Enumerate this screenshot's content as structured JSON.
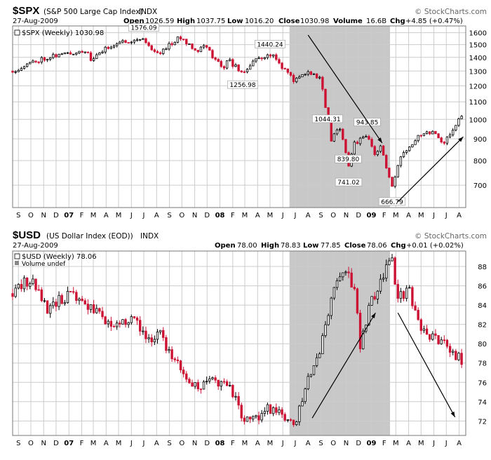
{
  "chart_data": [
    {
      "type": "candlestick",
      "symbol": "$SPX",
      "full_name": "(S&P 500 Large Cap Index)",
      "exchange": "INDX",
      "date": "27-Aug-2009",
      "brand": "© StockCharts.com",
      "legend": "$SPX (Weekly) 1030.98",
      "quote": {
        "open_label": "Open",
        "open": "1026.59",
        "high_label": "High",
        "high": "1037.75",
        "low_label": "Low",
        "low": "1016.20",
        "close_label": "Close",
        "close": "1030.98",
        "volume_label": "Volume",
        "volume": "16.6B",
        "chg_label": "Chg",
        "chg": "+4.85 (+0.47%)"
      },
      "y_scale": "log",
      "ylim": [
        620,
        1660
      ],
      "y_ticks": [
        700,
        800,
        900,
        1000,
        1100,
        1200,
        1300,
        1400,
        1500,
        1600
      ],
      "x_start": "2006-09-01",
      "x_end": "2009-08-31",
      "highlight": {
        "from": "2008-07-01",
        "to": "2009-03-01"
      },
      "trend_arrows": [
        {
          "from": [
            "2008-08-15",
            1580
          ],
          "to": [
            "2009-02-10",
            880
          ]
        },
        {
          "from": [
            "2009-03-20",
            640
          ],
          "to": [
            "2009-08-25",
            910
          ]
        }
      ],
      "annotations": [
        {
          "date": "2007-07-15",
          "value": 1576.09,
          "text": "1576.09",
          "pos": "above"
        },
        {
          "date": "2008-05-15",
          "value": 1440.24,
          "text": "1440.24",
          "pos": "above"
        },
        {
          "date": "2008-03-10",
          "value": 1256.98,
          "text": "1256.98",
          "pos": "below"
        },
        {
          "date": "2008-10-01",
          "value": 1044.31,
          "text": "1044.31",
          "pos": "below"
        },
        {
          "date": "2009-01-05",
          "value": 943.85,
          "text": "943.85",
          "pos": "above"
        },
        {
          "date": "2008-11-20",
          "value": 839.8,
          "text": "839.80",
          "pos": "below"
        },
        {
          "date": "2008-11-21",
          "value": 741.02,
          "text": "741.02",
          "pos": "below"
        },
        {
          "date": "2009-03-06",
          "value": 666.79,
          "text": "666.79",
          "pos": "below"
        }
      ],
      "anchors": [
        [
          "2006-09-01",
          1300
        ],
        [
          "2006-10-20",
          1365
        ],
        [
          "2006-12-01",
          1410
        ],
        [
          "2007-01-15",
          1430
        ],
        [
          "2007-02-23",
          1455
        ],
        [
          "2007-03-09",
          1380
        ],
        [
          "2007-04-27",
          1495
        ],
        [
          "2007-06-01",
          1530
        ],
        [
          "2007-07-13",
          1550
        ],
        [
          "2007-08-15",
          1420
        ],
        [
          "2007-09-14",
          1500
        ],
        [
          "2007-10-12",
          1560
        ],
        [
          "2007-11-23",
          1450
        ],
        [
          "2007-12-07",
          1500
        ],
        [
          "2008-01-22",
          1310
        ],
        [
          "2008-02-01",
          1390
        ],
        [
          "2008-03-10",
          1280
        ],
        [
          "2008-04-04",
          1370
        ],
        [
          "2008-05-16",
          1425
        ],
        [
          "2008-06-06",
          1360
        ],
        [
          "2008-06-27",
          1280
        ],
        [
          "2008-07-15",
          1230
        ],
        [
          "2008-08-08",
          1290
        ],
        [
          "2008-09-12",
          1260
        ],
        [
          "2008-10-10",
          890
        ],
        [
          "2008-10-31",
          960
        ],
        [
          "2008-11-21",
          780
        ],
        [
          "2008-12-05",
          880
        ],
        [
          "2009-01-06",
          910
        ],
        [
          "2009-01-23",
          830
        ],
        [
          "2009-02-06",
          860
        ],
        [
          "2009-03-06",
          690
        ],
        [
          "2009-03-27",
          810
        ],
        [
          "2009-05-08",
          920
        ],
        [
          "2009-06-12",
          940
        ],
        [
          "2009-07-10",
          880
        ],
        [
          "2009-08-21",
          1020
        ],
        [
          "2009-08-27",
          1030
        ]
      ],
      "x_labels": [
        {
          "date": "2006-09-15",
          "text": "S"
        },
        {
          "date": "2006-10-15",
          "text": "O"
        },
        {
          "date": "2006-11-15",
          "text": "N"
        },
        {
          "date": "2006-12-15",
          "text": "D"
        },
        {
          "date": "2007-01-15",
          "text": "07",
          "year": true
        },
        {
          "date": "2007-02-15",
          "text": "F"
        },
        {
          "date": "2007-03-15",
          "text": "M"
        },
        {
          "date": "2007-04-15",
          "text": "A"
        },
        {
          "date": "2007-05-15",
          "text": "M"
        },
        {
          "date": "2007-06-15",
          "text": "J"
        },
        {
          "date": "2007-07-15",
          "text": "J"
        },
        {
          "date": "2007-08-15",
          "text": "A"
        },
        {
          "date": "2007-09-15",
          "text": "S"
        },
        {
          "date": "2007-10-15",
          "text": "O"
        },
        {
          "date": "2007-11-15",
          "text": "N"
        },
        {
          "date": "2007-12-15",
          "text": "D"
        },
        {
          "date": "2008-01-15",
          "text": "08",
          "year": true
        },
        {
          "date": "2008-02-15",
          "text": "F"
        },
        {
          "date": "2008-03-15",
          "text": "M"
        },
        {
          "date": "2008-04-15",
          "text": "A"
        },
        {
          "date": "2008-05-15",
          "text": "M"
        },
        {
          "date": "2008-06-15",
          "text": "J"
        },
        {
          "date": "2008-07-15",
          "text": "J"
        },
        {
          "date": "2008-08-15",
          "text": "A"
        },
        {
          "date": "2008-09-15",
          "text": "S"
        },
        {
          "date": "2008-10-15",
          "text": "O"
        },
        {
          "date": "2008-11-15",
          "text": "N"
        },
        {
          "date": "2008-12-15",
          "text": "D"
        },
        {
          "date": "2009-01-15",
          "text": "09",
          "year": true
        },
        {
          "date": "2009-02-15",
          "text": "F"
        },
        {
          "date": "2009-03-15",
          "text": "M"
        },
        {
          "date": "2009-04-15",
          "text": "A"
        },
        {
          "date": "2009-05-15",
          "text": "M"
        },
        {
          "date": "2009-06-15",
          "text": "J"
        },
        {
          "date": "2009-07-15",
          "text": "J"
        },
        {
          "date": "2009-08-15",
          "text": "A"
        }
      ],
      "seed": 11,
      "volatility": 0.016,
      "colors": {
        "up": "#000000",
        "down": "#cc1133",
        "grid": "#cccccc",
        "shade": "#c8c8c8"
      }
    },
    {
      "type": "candlestick",
      "symbol": "$USD",
      "full_name": "(US Dollar Index (EOD))",
      "exchange": "INDX",
      "date": "27-Aug-2009",
      "brand": "© StockCharts.com",
      "legend": "$USD (Weekly) 78.06",
      "legend2": "Volume undef",
      "quote": {
        "open_label": "Open",
        "open": "78.00",
        "high_label": "High",
        "high": "78.83",
        "low_label": "Low",
        "low": "77.85",
        "close_label": "Close",
        "close": "78.06",
        "chg_label": "Chg",
        "chg": "+0.01 (+0.02%)"
      },
      "y_scale": "linear",
      "ylim": [
        70.5,
        89.6
      ],
      "y_ticks": [
        72,
        74,
        76,
        78,
        80,
        82,
        84,
        86,
        88
      ],
      "x_start": "2006-09-01",
      "x_end": "2009-08-31",
      "highlight": {
        "from": "2008-07-01",
        "to": "2009-03-01"
      },
      "trend_arrows": [
        {
          "from": [
            "2008-08-25",
            72.3
          ],
          "to": [
            "2009-01-25",
            83.2
          ]
        },
        {
          "from": [
            "2009-03-20",
            83.2
          ],
          "to": [
            "2009-08-05",
            72.4
          ]
        }
      ],
      "annotations": [],
      "anchors": [
        [
          "2006-09-01",
          85.2
        ],
        [
          "2006-10-13",
          86.8
        ],
        [
          "2006-11-10",
          84.6
        ],
        [
          "2006-11-24",
          83.2
        ],
        [
          "2006-12-15",
          84.3
        ],
        [
          "2007-01-12",
          85.0
        ],
        [
          "2007-02-23",
          84.3
        ],
        [
          "2007-03-30",
          82.8
        ],
        [
          "2007-04-27",
          81.8
        ],
        [
          "2007-05-25",
          82.5
        ],
        [
          "2007-06-22",
          82.8
        ],
        [
          "2007-07-20",
          80.3
        ],
        [
          "2007-08-24",
          81.2
        ],
        [
          "2007-09-21",
          78.5
        ],
        [
          "2007-11-23",
          75.2
        ],
        [
          "2007-12-21",
          76.6
        ],
        [
          "2008-01-25",
          75.6
        ],
        [
          "2008-02-22",
          74.8
        ],
        [
          "2008-03-14",
          71.8
        ],
        [
          "2008-04-11",
          72.3
        ],
        [
          "2008-05-09",
          73.3
        ],
        [
          "2008-06-13",
          72.6
        ],
        [
          "2008-07-18",
          72.0
        ],
        [
          "2008-08-15",
          76.8
        ],
        [
          "2008-09-12",
          79.0
        ],
        [
          "2008-10-24",
          86.8
        ],
        [
          "2008-11-21",
          87.2
        ],
        [
          "2008-12-05",
          85.6
        ],
        [
          "2008-12-19",
          79.6
        ],
        [
          "2009-01-09",
          84.0
        ],
        [
          "2009-01-30",
          85.8
        ],
        [
          "2009-02-20",
          87.8
        ],
        [
          "2009-03-06",
          88.3
        ],
        [
          "2009-03-20",
          84.8
        ],
        [
          "2009-04-17",
          85.4
        ],
        [
          "2009-05-15",
          81.5
        ],
        [
          "2009-06-12",
          80.5
        ],
        [
          "2009-07-10",
          80.0
        ],
        [
          "2009-08-27",
          78.06
        ]
      ],
      "x_labels": [
        {
          "date": "2006-09-15",
          "text": "S"
        },
        {
          "date": "2006-10-15",
          "text": "O"
        },
        {
          "date": "2006-11-15",
          "text": "N"
        },
        {
          "date": "2006-12-15",
          "text": "D"
        },
        {
          "date": "2007-01-15",
          "text": "07",
          "year": true
        },
        {
          "date": "2007-02-15",
          "text": "F"
        },
        {
          "date": "2007-03-15",
          "text": "M"
        },
        {
          "date": "2007-04-15",
          "text": "A"
        },
        {
          "date": "2007-05-15",
          "text": "M"
        },
        {
          "date": "2007-06-15",
          "text": "J"
        },
        {
          "date": "2007-07-15",
          "text": "J"
        },
        {
          "date": "2007-08-15",
          "text": "A"
        },
        {
          "date": "2007-09-15",
          "text": "S"
        },
        {
          "date": "2007-10-15",
          "text": "O"
        },
        {
          "date": "2007-11-15",
          "text": "N"
        },
        {
          "date": "2007-12-15",
          "text": "D"
        },
        {
          "date": "2008-01-15",
          "text": "08",
          "year": true
        },
        {
          "date": "2008-02-15",
          "text": "F"
        },
        {
          "date": "2008-03-15",
          "text": "M"
        },
        {
          "date": "2008-04-15",
          "text": "A"
        },
        {
          "date": "2008-05-15",
          "text": "M"
        },
        {
          "date": "2008-06-15",
          "text": "J"
        },
        {
          "date": "2008-07-15",
          "text": "J"
        },
        {
          "date": "2008-08-15",
          "text": "A"
        },
        {
          "date": "2008-09-15",
          "text": "S"
        },
        {
          "date": "2008-10-15",
          "text": "O"
        },
        {
          "date": "2008-11-15",
          "text": "N"
        },
        {
          "date": "2008-12-15",
          "text": "D"
        },
        {
          "date": "2009-01-15",
          "text": "09",
          "year": true
        },
        {
          "date": "2009-02-15",
          "text": "F"
        },
        {
          "date": "2009-03-15",
          "text": "M"
        },
        {
          "date": "2009-04-15",
          "text": "A"
        },
        {
          "date": "2009-05-15",
          "text": "M"
        },
        {
          "date": "2009-06-15",
          "text": "J"
        },
        {
          "date": "2009-07-15",
          "text": "J"
        },
        {
          "date": "2009-08-15",
          "text": "A"
        }
      ],
      "seed": 29,
      "volatility": 0.009,
      "colors": {
        "up": "#000000",
        "down": "#cc1133",
        "grid": "#cccccc",
        "shade": "#c8c8c8"
      }
    }
  ]
}
